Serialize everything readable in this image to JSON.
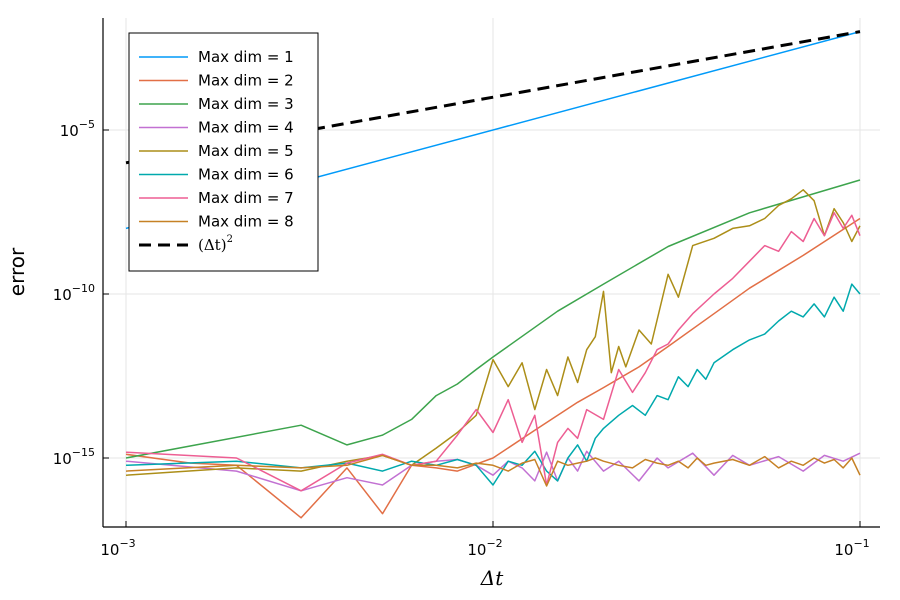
{
  "chart_data": {
    "type": "line",
    "xlabel": "Δt",
    "ylabel": "error",
    "xscale": "log",
    "yscale": "log",
    "xlim": [
      0.001,
      0.1
    ],
    "ylim": [
      1e-17,
      0.1
    ],
    "x_ticks": [
      {
        "value": 0.001,
        "base": "10",
        "exp": "−3"
      },
      {
        "value": 0.01,
        "base": "10",
        "exp": "−2"
      },
      {
        "value": 0.1,
        "base": "10",
        "exp": "−1"
      }
    ],
    "y_ticks": [
      {
        "value": 1e-15,
        "base": "10",
        "exp": "−15"
      },
      {
        "value": 1e-10,
        "base": "10",
        "exp": "−10"
      },
      {
        "value": 1e-05,
        "base": "10",
        "exp": "−5"
      }
    ],
    "grid": true,
    "legend_position": "top-left",
    "colors": {
      "dim1": "#009af9",
      "dim2": "#e26f46",
      "dim3": "#3da44d",
      "dim4": "#c271d2",
      "dim5": "#ac8e18",
      "dim6": "#00a9ad",
      "dim7": "#ed5e93",
      "dim8": "#c68125",
      "reference": "#000000"
    },
    "series": [
      {
        "key": "dim1",
        "name": "Max dim = 1",
        "x": [
          0.001,
          0.1
        ],
        "y": [
          1e-08,
          0.01
        ]
      },
      {
        "key": "dim2",
        "name": "Max dim = 2",
        "x": [
          0.001,
          0.0015,
          0.002,
          0.003,
          0.004,
          0.005,
          0.006,
          0.007,
          0.008,
          0.01,
          0.013,
          0.017,
          0.02,
          0.025,
          0.03,
          0.04,
          0.05,
          0.07,
          0.1
        ],
        "y": [
          1.3e-15,
          7e-16,
          6e-16,
          1.5e-17,
          5e-16,
          2e-17,
          6e-16,
          5e-16,
          4e-16,
          1e-15,
          7e-15,
          5e-14,
          1.4e-13,
          6e-13,
          2.5e-12,
          2.5e-11,
          1.5e-10,
          1.5e-09,
          2e-08
        ]
      },
      {
        "key": "dim3",
        "name": "Max dim = 3",
        "x": [
          0.001,
          0.003,
          0.004,
          0.005,
          0.006,
          0.007,
          0.008,
          0.009,
          0.01,
          0.015,
          0.02,
          0.03,
          0.05,
          0.1
        ],
        "y": [
          1e-15,
          1e-14,
          2.5e-15,
          5e-15,
          1.5e-14,
          8e-14,
          1.8e-13,
          5e-13,
          1.2e-12,
          3e-11,
          2e-10,
          2.8e-09,
          3e-08,
          3e-07
        ]
      },
      {
        "key": "dim4",
        "name": "Max dim = 4",
        "x": [
          0.001,
          0.002,
          0.003,
          0.004,
          0.005,
          0.006,
          0.007,
          0.008,
          0.009,
          0.01,
          0.011,
          0.012,
          0.013,
          0.014,
          0.015,
          0.016,
          0.017,
          0.018,
          0.02,
          0.022,
          0.025,
          0.028,
          0.03,
          0.035,
          0.04,
          0.045,
          0.05,
          0.06,
          0.07,
          0.08,
          0.09,
          0.1
        ],
        "y": [
          8e-16,
          4e-16,
          1e-16,
          2.5e-16,
          1.5e-16,
          6e-16,
          8e-16,
          9e-16,
          6e-16,
          3e-16,
          8e-16,
          5e-16,
          2e-16,
          1.5e-15,
          2e-16,
          1e-15,
          4e-16,
          1.6e-15,
          4e-16,
          8e-16,
          2e-16,
          1e-15,
          5e-16,
          1.4e-15,
          3e-16,
          1.2e-15,
          6e-16,
          1.1e-15,
          4e-16,
          1.2e-15,
          8e-16,
          1.4e-15
        ]
      },
      {
        "key": "dim5",
        "name": "Max dim = 5",
        "x": [
          0.001,
          0.002,
          0.003,
          0.004,
          0.005,
          0.006,
          0.007,
          0.008,
          0.009,
          0.01,
          0.011,
          0.012,
          0.013,
          0.014,
          0.015,
          0.016,
          0.017,
          0.018,
          0.019,
          0.02,
          0.021,
          0.022,
          0.023,
          0.025,
          0.027,
          0.03,
          0.032,
          0.035,
          0.04,
          0.045,
          0.05,
          0.055,
          0.06,
          0.065,
          0.07,
          0.075,
          0.08,
          0.085,
          0.09,
          0.095,
          0.1
        ],
        "y": [
          3e-16,
          5e-16,
          4e-16,
          8e-16,
          1.2e-15,
          6e-16,
          2e-15,
          6e-15,
          2e-14,
          1e-12,
          1.5e-13,
          8e-13,
          3e-14,
          5e-13,
          8e-14,
          1.2e-12,
          2e-13,
          2e-12,
          5e-12,
          1.2e-10,
          4e-13,
          2.5e-12,
          6e-13,
          8e-12,
          3e-12,
          4e-10,
          8e-11,
          3e-09,
          5e-09,
          1e-08,
          1.2e-08,
          2e-08,
          5e-08,
          8e-08,
          1.5e-07,
          7e-08,
          6e-09,
          4e-08,
          1.5e-08,
          4e-09,
          1.2e-08
        ]
      },
      {
        "key": "dim6",
        "name": "Max dim = 6",
        "x": [
          0.001,
          0.002,
          0.003,
          0.004,
          0.005,
          0.006,
          0.007,
          0.008,
          0.009,
          0.01,
          0.011,
          0.012,
          0.013,
          0.014,
          0.015,
          0.016,
          0.017,
          0.018,
          0.019,
          0.02,
          0.022,
          0.024,
          0.026,
          0.028,
          0.03,
          0.032,
          0.034,
          0.036,
          0.038,
          0.04,
          0.045,
          0.05,
          0.055,
          0.06,
          0.065,
          0.07,
          0.075,
          0.08,
          0.085,
          0.09,
          0.095,
          0.1
        ],
        "y": [
          6e-16,
          8e-16,
          5e-16,
          7e-16,
          4e-16,
          8e-16,
          6e-16,
          9e-16,
          6e-16,
          1.5e-16,
          8e-16,
          6e-16,
          1.6e-15,
          4e-16,
          2e-16,
          1e-15,
          2.5e-15,
          8e-16,
          4e-15,
          8e-15,
          2e-14,
          4e-14,
          2e-14,
          8e-14,
          6e-14,
          3e-13,
          1.5e-13,
          5e-13,
          2.5e-13,
          8e-13,
          2e-12,
          4e-12,
          6e-12,
          1.5e-11,
          3e-11,
          2e-11,
          5e-11,
          2e-11,
          8e-11,
          3e-11,
          2e-10,
          1e-10
        ]
      },
      {
        "key": "dim7",
        "name": "Max dim = 7",
        "x": [
          0.001,
          0.002,
          0.003,
          0.004,
          0.005,
          0.006,
          0.007,
          0.008,
          0.009,
          0.01,
          0.011,
          0.012,
          0.013,
          0.014,
          0.015,
          0.016,
          0.017,
          0.018,
          0.02,
          0.022,
          0.024,
          0.026,
          0.028,
          0.03,
          0.032,
          0.035,
          0.04,
          0.045,
          0.05,
          0.055,
          0.06,
          0.065,
          0.07,
          0.075,
          0.08,
          0.085,
          0.09,
          0.095,
          0.1
        ],
        "y": [
          1.5e-15,
          1e-15,
          1e-16,
          7e-16,
          1.3e-15,
          6e-16,
          8e-16,
          5e-15,
          3e-14,
          6e-15,
          6e-14,
          3e-15,
          2e-14,
          1.5e-16,
          3e-15,
          8e-15,
          4e-15,
          3e-14,
          1.5e-14,
          5e-13,
          1e-13,
          4e-13,
          2e-12,
          3e-12,
          8e-12,
          2.5e-11,
          1e-10,
          3e-10,
          1e-09,
          3e-09,
          2e-09,
          8e-09,
          4e-09,
          2e-08,
          6e-09,
          3e-08,
          1e-08,
          2.5e-08,
          6e-09
        ]
      },
      {
        "key": "dim8",
        "name": "Max dim = 8",
        "x": [
          0.001,
          0.002,
          0.003,
          0.004,
          0.005,
          0.006,
          0.007,
          0.008,
          0.009,
          0.01,
          0.011,
          0.012,
          0.013,
          0.014,
          0.015,
          0.016,
          0.017,
          0.018,
          0.019,
          0.02,
          0.022,
          0.024,
          0.026,
          0.028,
          0.03,
          0.032,
          0.034,
          0.036,
          0.038,
          0.04,
          0.045,
          0.05,
          0.055,
          0.06,
          0.065,
          0.07,
          0.075,
          0.08,
          0.085,
          0.09,
          0.095,
          0.1
        ],
        "y": [
          4e-16,
          6e-16,
          5e-16,
          6e-16,
          1.2e-15,
          6e-16,
          6e-16,
          5e-16,
          7e-16,
          6e-16,
          4e-16,
          7e-16,
          9e-16,
          1.4e-16,
          8e-16,
          6e-16,
          7e-16,
          8e-16,
          1e-15,
          8e-16,
          6e-16,
          5e-16,
          9e-16,
          7e-16,
          6e-16,
          8e-16,
          5e-16,
          1e-15,
          6e-16,
          7e-16,
          9e-16,
          6e-16,
          1.1e-15,
          5e-16,
          8e-16,
          6e-16,
          1e-15,
          7e-16,
          9e-16,
          5e-16,
          1e-15,
          3e-16
        ]
      },
      {
        "key": "reference",
        "name": "(Δt)",
        "name_sup": "2",
        "dashed": true,
        "x": [
          0.001,
          0.1
        ],
        "y": [
          1e-06,
          0.01
        ]
      }
    ]
  }
}
